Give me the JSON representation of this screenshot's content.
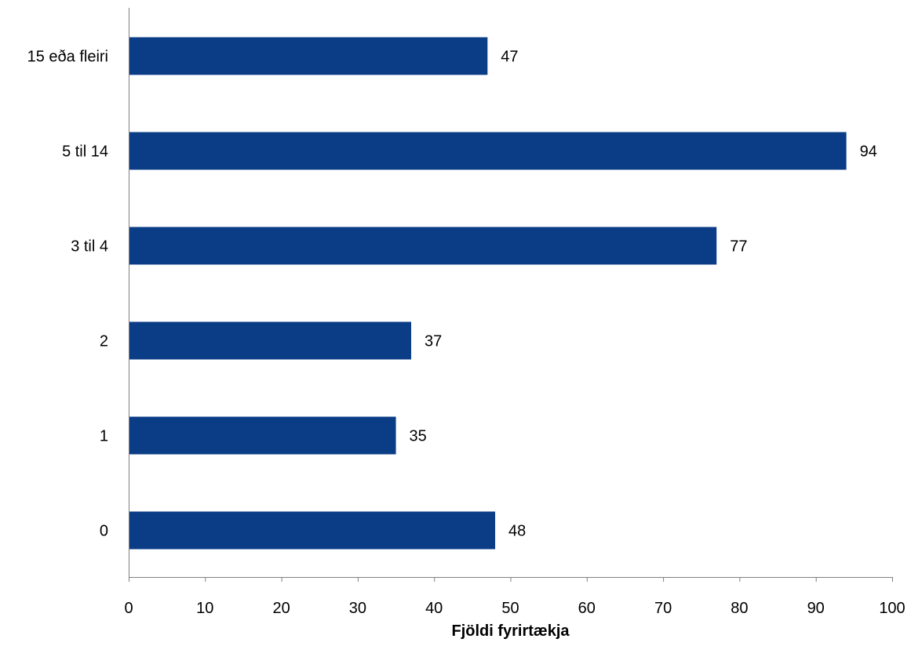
{
  "chart_data": {
    "type": "bar",
    "orientation": "horizontal",
    "categories": [
      "15 eða fleiri",
      "5 til 14",
      "3 til 4",
      "2",
      "1",
      "0"
    ],
    "values": [
      47,
      94,
      77,
      37,
      35,
      48
    ],
    "title": "",
    "xlabel": "Fjöldi fyrirtækja",
    "ylabel": "",
    "xlim": [
      0,
      100
    ],
    "x_ticks": [
      "0",
      "10",
      "20",
      "30",
      "40",
      "50",
      "60",
      "70",
      "80",
      "90",
      "100"
    ],
    "grid": false,
    "legend": "none",
    "data_labels": true,
    "bar_color": "#0b3d87"
  }
}
